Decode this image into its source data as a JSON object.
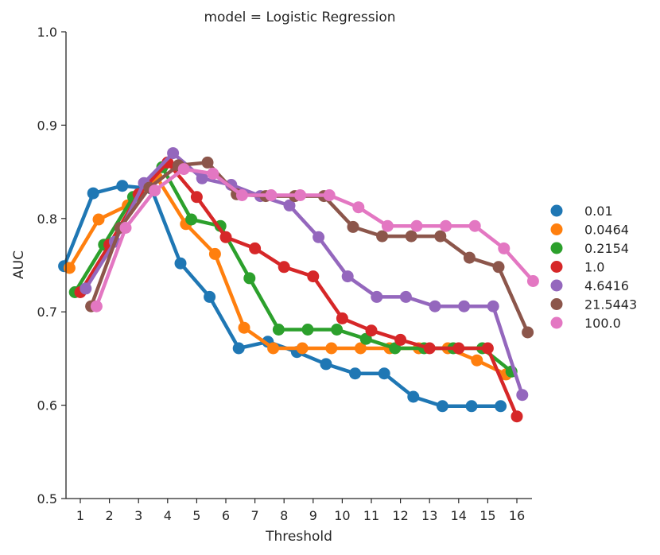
{
  "chart_data": {
    "type": "line",
    "title": "model = Logistic Regression",
    "xlabel": "Threshold",
    "ylabel": "AUC",
    "ylim": [
      0.5,
      1.0
    ],
    "yticks": [
      "0.5",
      "0.6",
      "0.7",
      "0.8",
      "0.9",
      "1.0"
    ],
    "categories": [
      "1",
      "2",
      "3",
      "4",
      "5",
      "6",
      "7",
      "8",
      "9",
      "10",
      "11",
      "12",
      "13",
      "14",
      "15",
      "16"
    ],
    "legend_position": "right",
    "series": [
      {
        "name": "0.01",
        "color": "#1f77b4",
        "values": [
          0.749,
          0.827,
          0.835,
          0.832,
          0.752,
          0.716,
          0.661,
          0.668,
          0.657,
          0.644,
          0.634,
          0.634,
          0.609,
          0.599,
          0.599,
          0.599
        ]
      },
      {
        "name": "0.0464",
        "color": "#ff7f0e",
        "values": [
          0.747,
          0.799,
          0.814,
          0.844,
          0.794,
          0.762,
          0.683,
          0.661,
          0.661,
          0.661,
          0.661,
          0.661,
          0.661,
          0.661,
          0.648,
          0.633
        ]
      },
      {
        "name": "0.2154",
        "color": "#2ca02c",
        "values": [
          0.721,
          0.772,
          0.823,
          0.855,
          0.799,
          0.792,
          0.736,
          0.681,
          0.681,
          0.681,
          0.671,
          0.661,
          0.661,
          0.661,
          0.661,
          0.636
        ]
      },
      {
        "name": "1.0",
        "color": "#d62728",
        "values": [
          0.721,
          0.772,
          0.826,
          0.86,
          0.823,
          0.78,
          0.768,
          0.748,
          0.738,
          0.693,
          0.68,
          0.67,
          0.661,
          0.661,
          0.661,
          0.588
        ]
      },
      {
        "name": "4.6416",
        "color": "#9467bd",
        "values": [
          0.725,
          0.775,
          0.838,
          0.87,
          0.843,
          0.836,
          0.824,
          0.814,
          0.78,
          0.738,
          0.716,
          0.716,
          0.706,
          0.706,
          0.706,
          0.611
        ]
      },
      {
        "name": "21.5443",
        "color": "#8c564b",
        "values": [
          0.706,
          0.79,
          0.833,
          0.857,
          0.86,
          0.826,
          0.824,
          0.824,
          0.824,
          0.791,
          0.781,
          0.781,
          0.781,
          0.758,
          0.748,
          0.678
        ]
      },
      {
        "name": "100.0",
        "color": "#e377c2",
        "values": [
          0.706,
          0.79,
          0.83,
          0.853,
          0.848,
          0.825,
          0.825,
          0.825,
          0.825,
          0.812,
          0.792,
          0.792,
          0.792,
          0.792,
          0.768,
          0.733
        ]
      }
    ]
  }
}
